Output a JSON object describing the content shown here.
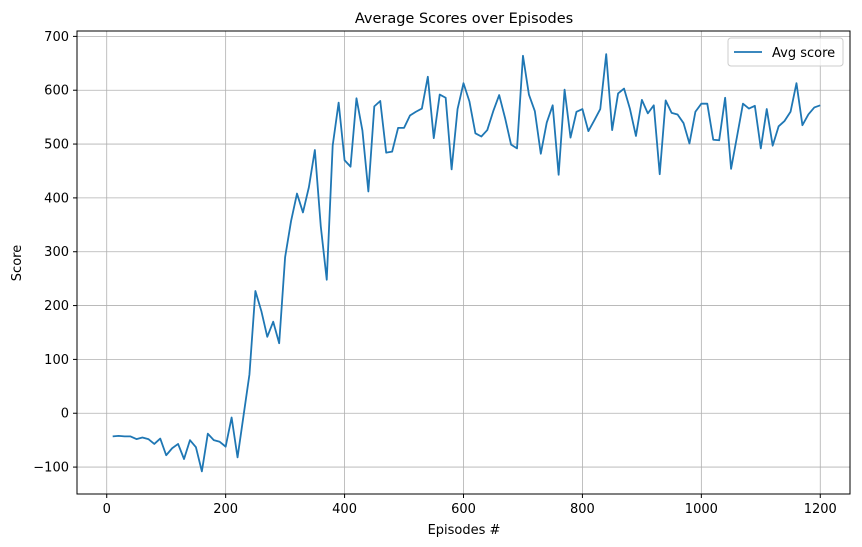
{
  "chart_data": {
    "type": "line",
    "title": "Average Scores over Episodes",
    "xlabel": "Episodes #",
    "ylabel": "Score",
    "xlim": [
      -50,
      1250
    ],
    "ylim": [
      -150,
      710
    ],
    "xticks": [
      0,
      200,
      400,
      600,
      800,
      1000,
      1200
    ],
    "yticks": [
      -100,
      0,
      100,
      200,
      300,
      400,
      500,
      600,
      700
    ],
    "grid": true,
    "legend_position": "top-right",
    "series": [
      {
        "name": "Avg score",
        "color": "#1f77b4",
        "x": [
          10,
          20,
          30,
          40,
          50,
          60,
          70,
          80,
          90,
          100,
          110,
          120,
          130,
          140,
          150,
          160,
          170,
          180,
          190,
          200,
          210,
          220,
          230,
          240,
          250,
          260,
          270,
          280,
          290,
          300,
          310,
          320,
          330,
          340,
          350,
          360,
          370,
          380,
          390,
          400,
          410,
          420,
          430,
          440,
          450,
          460,
          470,
          480,
          490,
          500,
          510,
          520,
          530,
          540,
          550,
          560,
          570,
          580,
          590,
          600,
          610,
          620,
          630,
          640,
          650,
          660,
          670,
          680,
          690,
          700,
          710,
          720,
          730,
          740,
          750,
          760,
          770,
          780,
          790,
          800,
          810,
          820,
          830,
          840,
          850,
          860,
          870,
          880,
          890,
          900,
          910,
          920,
          930,
          940,
          950,
          960,
          970,
          980,
          990,
          1000,
          1010,
          1020,
          1030,
          1040,
          1050,
          1060,
          1070,
          1080,
          1090,
          1100,
          1110,
          1120,
          1130,
          1140,
          1150,
          1160,
          1170,
          1180,
          1190,
          1200
        ],
        "values": [
          -43,
          -42,
          -43,
          -43,
          -48,
          -45,
          -48,
          -57,
          -47,
          -78,
          -65,
          -57,
          -85,
          -50,
          -63,
          -108,
          -38,
          -50,
          -53,
          -62,
          -8,
          -82,
          -5,
          72,
          227,
          190,
          142,
          170,
          130,
          290,
          357,
          408,
          373,
          420,
          489,
          347,
          248,
          497,
          577,
          470,
          458,
          585,
          525,
          412,
          570,
          580,
          484,
          486,
          530,
          530,
          553,
          560,
          566,
          625,
          511,
          592,
          586,
          453,
          565,
          613,
          579,
          520,
          514,
          526,
          561,
          591,
          548,
          499,
          492,
          664,
          592,
          561,
          482,
          540,
          572,
          443,
          601,
          512,
          560,
          565,
          524,
          544,
          565,
          667,
          526,
          594,
          603,
          565,
          515,
          582,
          557,
          572,
          444,
          581,
          558,
          555,
          539,
          501,
          560,
          575,
          575,
          508,
          507,
          586,
          454,
          514,
          575,
          566,
          571,
          492,
          565,
          497,
          533,
          543,
          560,
          613,
          535,
          555,
          568,
          572
        ]
      }
    ]
  }
}
